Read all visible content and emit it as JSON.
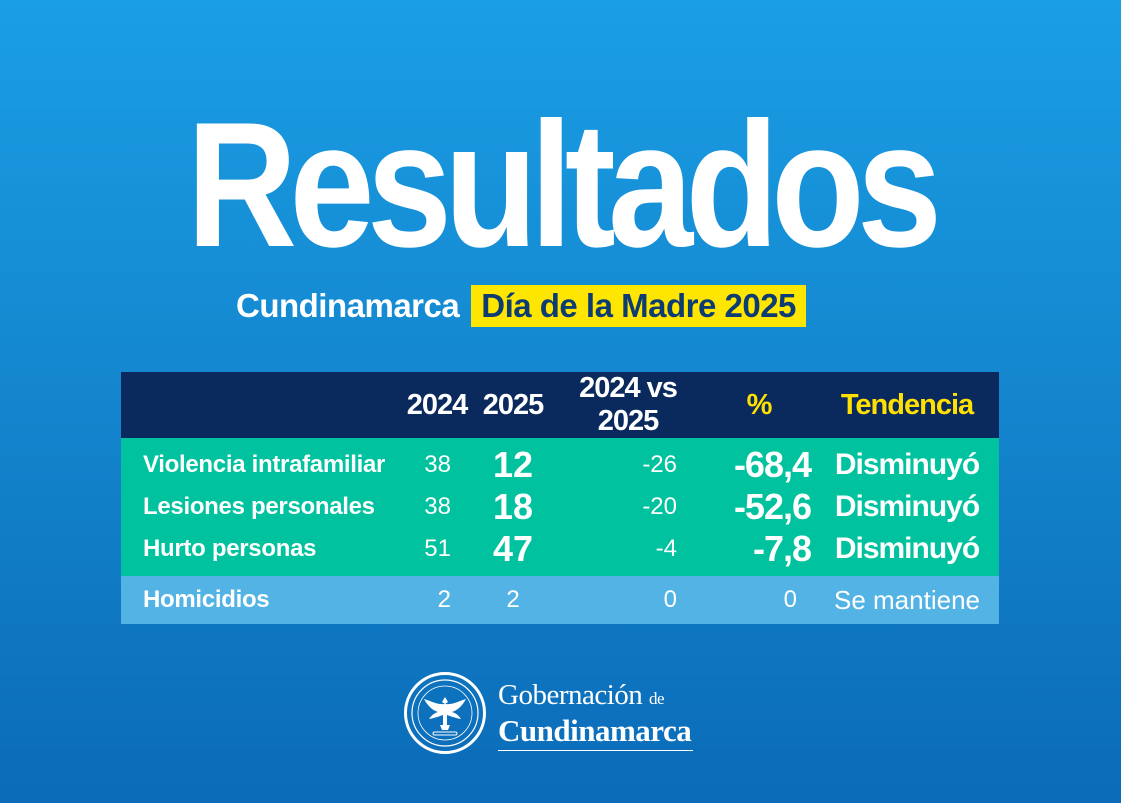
{
  "title": "Resultados",
  "subtitle": {
    "region": "Cundinamarca",
    "event": "Día de la Madre 2025"
  },
  "table": {
    "headers": {
      "y2024": "2024",
      "y2025": "2025",
      "diff": "2024 vs 2025",
      "pct": "%",
      "trend": "Tendencia"
    },
    "rows": [
      {
        "label": "Violencia intrafamiliar",
        "v2024": "38",
        "v2025": "12",
        "diff": "-26",
        "pct": "-68,4",
        "trend": "Disminuyó"
      },
      {
        "label": "Lesiones personales",
        "v2024": "38",
        "v2025": "18",
        "diff": "-20",
        "pct": "-52,6",
        "trend": "Disminuyó"
      },
      {
        "label": "Hurto personas",
        "v2024": "51",
        "v2025": "47",
        "diff": "-4",
        "pct": "-7,8",
        "trend": "Disminuyó"
      },
      {
        "label": "Homicidios",
        "v2024": "2",
        "v2025": "2",
        "diff": "0",
        "pct": "0",
        "trend": "Se mantiene"
      }
    ]
  },
  "logo": {
    "line1": "Gobernación",
    "line1_small": "de",
    "line2": "Cundinamarca",
    "icon": "coat-of-arms-eagle-icon"
  },
  "colors": {
    "background": "#1488d0",
    "header": "#0a2a5e",
    "green_rows": "#00c29e",
    "blue_row": "#54b3e5",
    "highlight": "#ffe600"
  }
}
